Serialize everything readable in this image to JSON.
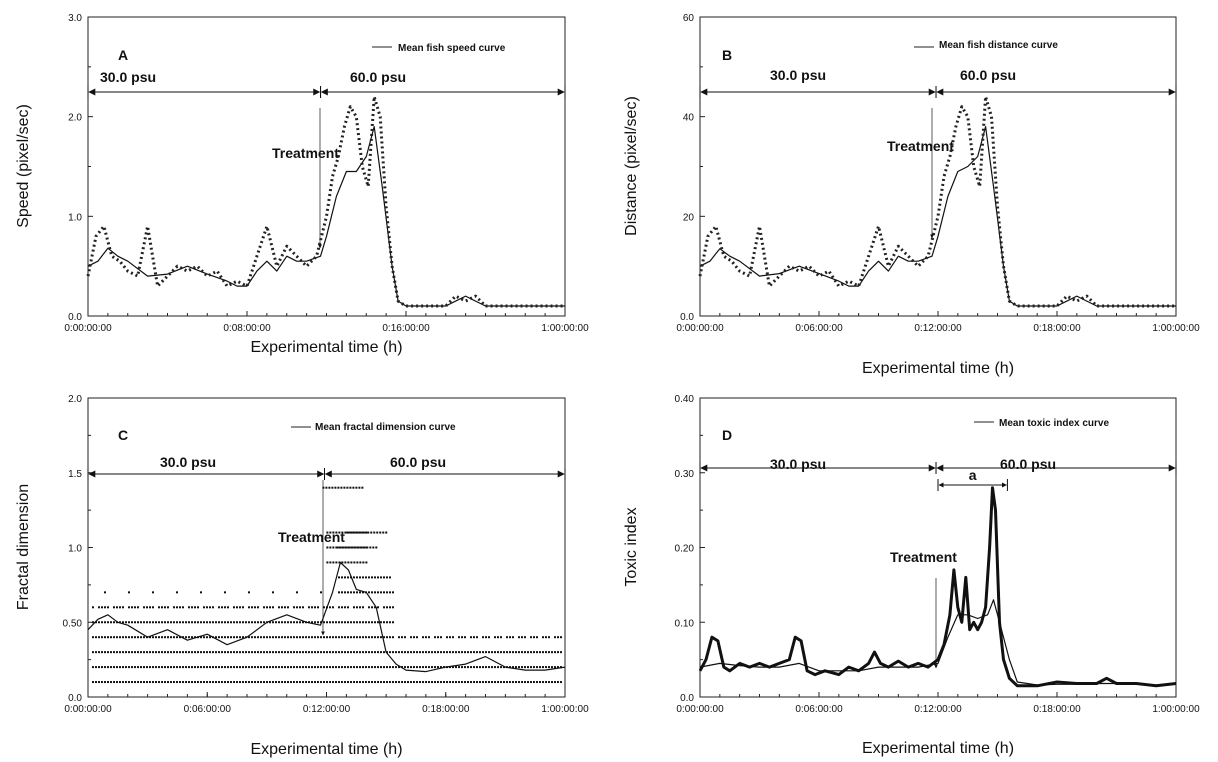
{
  "chart_data": [
    {
      "type": "line",
      "panel_label": "A",
      "legend": "Mean fish speed curve",
      "xlabel": "Experimental time (h)",
      "ylabel": "Speed (pixel/sec)",
      "xlim": [
        0,
        24
      ],
      "ylim": [
        0,
        3.0
      ],
      "x_tick_values": [
        0,
        8,
        16,
        24
      ],
      "x_tick_labels": [
        "0:00:00:00",
        "0:08:00:00",
        "0:16:00:00",
        "1:00:00:00"
      ],
      "y_tick_values": [
        0,
        1,
        2,
        3
      ],
      "y_tick_labels": [
        "0.0",
        "1.0",
        "2.0",
        "3.0"
      ],
      "regions": [
        {
          "label": "30.0 psu",
          "from": 0,
          "to": 11.7
        },
        {
          "label": "60.0 psu",
          "from": 11.7,
          "to": 24
        }
      ],
      "treatment": {
        "label": "Treatment",
        "x": 11.7
      },
      "series": [
        {
          "name": "Mean fish speed curve",
          "style": "solid",
          "x": [
            0,
            0.5,
            1,
            1.5,
            2,
            3,
            4,
            5,
            6,
            7,
            7.5,
            8,
            8.5,
            9,
            9.5,
            10,
            10.5,
            11,
            11.7,
            12,
            12.5,
            13,
            13.5,
            14,
            14.4,
            14.8,
            15.3,
            15.6,
            16,
            17,
            18,
            18.5,
            19,
            19.5,
            20,
            21,
            22,
            23,
            24
          ],
          "y": [
            0.5,
            0.55,
            0.68,
            0.6,
            0.55,
            0.4,
            0.42,
            0.5,
            0.42,
            0.35,
            0.3,
            0.3,
            0.45,
            0.55,
            0.45,
            0.6,
            0.55,
            0.55,
            0.6,
            0.8,
            1.2,
            1.45,
            1.45,
            1.6,
            1.9,
            1.3,
            0.5,
            0.15,
            0.1,
            0.1,
            0.1,
            0.15,
            0.2,
            0.15,
            0.1,
            0.1,
            0.1,
            0.1,
            0.1
          ]
        },
        {
          "name": "",
          "style": "dotted",
          "x": [
            0,
            0.4,
            0.8,
            1.2,
            1.6,
            2,
            2.5,
            3,
            3.5,
            4,
            4.5,
            5,
            5.5,
            6,
            6.5,
            7,
            7.5,
            8,
            8.5,
            9,
            9.5,
            10,
            10.5,
            11,
            11.5,
            12,
            12.3,
            12.6,
            12.9,
            13.2,
            13.5,
            13.8,
            14.1,
            14.4,
            14.7,
            15,
            15.3,
            15.6,
            16,
            17,
            18,
            18.5,
            19,
            19.5,
            20,
            21,
            22,
            23,
            24
          ],
          "y": [
            0.4,
            0.8,
            0.9,
            0.6,
            0.55,
            0.45,
            0.4,
            0.9,
            0.3,
            0.4,
            0.5,
            0.45,
            0.5,
            0.4,
            0.45,
            0.3,
            0.35,
            0.3,
            0.6,
            0.9,
            0.5,
            0.7,
            0.6,
            0.5,
            0.6,
            1.0,
            1.4,
            1.6,
            1.9,
            2.1,
            2.0,
            1.5,
            1.3,
            2.2,
            2.0,
            1.1,
            0.5,
            0.15,
            0.1,
            0.1,
            0.1,
            0.2,
            0.15,
            0.2,
            0.1,
            0.1,
            0.1,
            0.1,
            0.1
          ]
        }
      ]
    },
    {
      "type": "line",
      "panel_label": "B",
      "legend": "Mean fish distance curve",
      "xlabel": "Experimental time (h)",
      "ylabel": "Distance (pixel/sec)",
      "xlim": [
        0,
        24
      ],
      "ylim": [
        0,
        60
      ],
      "x_tick_values": [
        0,
        6,
        12,
        18,
        24
      ],
      "x_tick_labels": [
        "0:00:00:00",
        "0:06:00:00",
        "0:12:00:00",
        "0:18:00:00",
        "1:00:00:00"
      ],
      "y_tick_values": [
        0,
        20,
        40,
        60
      ],
      "y_tick_labels": [
        "0.0",
        "20",
        "40",
        "60"
      ],
      "regions": [
        {
          "label": "30.0 psu",
          "from": 0,
          "to": 11.9
        },
        {
          "label": "60.0 psu",
          "from": 11.9,
          "to": 24
        }
      ],
      "treatment": {
        "label": "Treatment",
        "x": 11.7
      },
      "series": [
        {
          "name": "Mean fish distance curve",
          "style": "solid",
          "x": [
            0,
            0.5,
            1,
            1.5,
            2,
            3,
            4,
            5,
            6,
            7,
            7.5,
            8,
            8.5,
            9,
            9.5,
            10,
            10.5,
            11,
            11.7,
            12,
            12.5,
            13,
            13.5,
            14,
            14.4,
            14.8,
            15.3,
            15.6,
            16,
            17,
            18,
            18.5,
            19,
            19.5,
            20,
            21,
            22,
            23,
            24
          ],
          "y": [
            10,
            11,
            13.5,
            12,
            11,
            8,
            8.5,
            10,
            8.5,
            7,
            6,
            6,
            9,
            11,
            9,
            12,
            11,
            11,
            12,
            16,
            24,
            29,
            30,
            32,
            38,
            26,
            10,
            3,
            2,
            2,
            2,
            3,
            4,
            3,
            2,
            2,
            2,
            2,
            2
          ]
        },
        {
          "name": "",
          "style": "dotted",
          "x": [
            0,
            0.4,
            0.8,
            1.2,
            1.6,
            2,
            2.5,
            3,
            3.5,
            4,
            4.5,
            5,
            5.5,
            6,
            6.5,
            7,
            7.5,
            8,
            8.5,
            9,
            9.5,
            10,
            10.5,
            11,
            11.5,
            12,
            12.3,
            12.6,
            12.9,
            13.2,
            13.5,
            13.8,
            14.1,
            14.4,
            14.7,
            15,
            15.3,
            15.6,
            16,
            17,
            18,
            18.5,
            19,
            19.5,
            20,
            21,
            22,
            23,
            24
          ],
          "y": [
            8,
            16,
            18,
            12,
            11,
            9,
            8,
            18,
            6,
            8,
            10,
            9,
            10,
            8,
            9,
            6,
            7,
            6,
            12,
            18,
            10,
            14,
            12,
            10,
            12,
            20,
            28,
            32,
            38,
            42,
            40,
            30,
            26,
            44,
            40,
            22,
            10,
            3,
            2,
            2,
            2,
            4,
            3,
            4,
            2,
            2,
            2,
            2,
            2
          ]
        }
      ]
    },
    {
      "type": "line",
      "panel_label": "C",
      "legend": "Mean fractal dimension curve",
      "xlabel": "Experimental time (h)",
      "ylabel": "Fractal dimension",
      "xlim": [
        0,
        24
      ],
      "ylim": [
        0,
        2.0
      ],
      "x_tick_values": [
        0,
        6,
        12,
        18,
        24
      ],
      "x_tick_labels": [
        "0:00:00:00",
        "0:06:00:00",
        "0:12:00:00",
        "0:18:00:00",
        "1:00:00:00"
      ],
      "y_tick_values": [
        0,
        0.5,
        1.0,
        1.5,
        2.0
      ],
      "y_tick_labels": [
        "0.0",
        "0.50",
        "1.0",
        "1.5",
        "2.0"
      ],
      "regions": [
        {
          "label": "30.0 psu",
          "from": 0,
          "to": 11.9
        },
        {
          "label": "60.0 psu",
          "from": 11.9,
          "to": 24
        }
      ],
      "treatment": {
        "label": "Treatment",
        "x": 11.7
      },
      "dot_rows": [
        0.1,
        0.2,
        0.3,
        0.4,
        0.5,
        0.6,
        0.7,
        0.8
      ],
      "series": [
        {
          "name": "Mean fractal dimension curve",
          "style": "solid",
          "x": [
            0,
            0.5,
            1,
            1.5,
            2,
            3,
            4,
            5,
            6,
            7,
            8,
            9,
            10,
            11,
            11.7,
            12.3,
            12.7,
            13.1,
            13.5,
            14,
            14.5,
            15,
            15.5,
            16,
            17,
            18,
            19,
            20,
            21,
            22,
            23,
            24
          ],
          "y": [
            0.45,
            0.52,
            0.55,
            0.5,
            0.48,
            0.4,
            0.45,
            0.38,
            0.42,
            0.35,
            0.4,
            0.5,
            0.55,
            0.5,
            0.48,
            0.7,
            0.9,
            0.85,
            0.72,
            0.7,
            0.6,
            0.3,
            0.22,
            0.18,
            0.17,
            0.2,
            0.22,
            0.27,
            0.2,
            0.18,
            0.18,
            0.2
          ]
        }
      ]
    },
    {
      "type": "line",
      "panel_label": "D",
      "legend": "Mean toxic index curve",
      "xlabel": "Experimental time (h)",
      "ylabel": "Toxic index",
      "xlim": [
        0,
        24
      ],
      "ylim": [
        0,
        0.4
      ],
      "x_tick_values": [
        0,
        6,
        12,
        18,
        24
      ],
      "x_tick_labels": [
        "0:00:00:00",
        "0:06:00:00",
        "0:12:00:00",
        "0:18:00:00",
        "1:00:00:00"
      ],
      "y_tick_values": [
        0,
        0.1,
        0.2,
        0.3,
        0.4
      ],
      "y_tick_labels": [
        "0.0",
        "0.10",
        "0.20",
        "0.30",
        "0.40"
      ],
      "regions": [
        {
          "label": "30.0 psu",
          "from": 0,
          "to": 11.9
        },
        {
          "label": "60.0 psu",
          "from": 11.9,
          "to": 24
        }
      ],
      "treatment": {
        "label": "Treatment",
        "x": 11.9
      },
      "interval": {
        "label": "a",
        "from": 12.0,
        "to": 15.5
      },
      "series": [
        {
          "name": "",
          "style": "thick",
          "x": [
            0,
            0.3,
            0.6,
            0.9,
            1.2,
            1.5,
            2,
            2.5,
            3,
            3.5,
            4,
            4.5,
            4.8,
            5.1,
            5.4,
            5.8,
            6.3,
            7,
            7.5,
            8,
            8.5,
            8.8,
            9.1,
            9.5,
            10,
            10.5,
            11,
            11.5,
            12,
            12.3,
            12.6,
            12.8,
            13,
            13.2,
            13.4,
            13.6,
            13.8,
            14,
            14.2,
            14.4,
            14.6,
            14.75,
            14.9,
            15.1,
            15.3,
            15.6,
            16,
            17,
            18,
            19,
            20,
            20.5,
            21,
            22,
            23,
            24
          ],
          "y": [
            0.035,
            0.05,
            0.08,
            0.075,
            0.04,
            0.035,
            0.045,
            0.04,
            0.045,
            0.04,
            0.045,
            0.05,
            0.08,
            0.075,
            0.035,
            0.03,
            0.035,
            0.03,
            0.04,
            0.035,
            0.045,
            0.06,
            0.045,
            0.04,
            0.048,
            0.04,
            0.045,
            0.04,
            0.05,
            0.07,
            0.11,
            0.17,
            0.12,
            0.1,
            0.16,
            0.09,
            0.1,
            0.09,
            0.1,
            0.12,
            0.2,
            0.28,
            0.25,
            0.1,
            0.05,
            0.025,
            0.015,
            0.015,
            0.02,
            0.018,
            0.018,
            0.025,
            0.018,
            0.018,
            0.015,
            0.018
          ]
        },
        {
          "name": "Mean toxic index curve",
          "style": "solid",
          "x": [
            0,
            1,
            2,
            3,
            4,
            5,
            6,
            7,
            8,
            9,
            10,
            11,
            12,
            12.5,
            13,
            13.5,
            14,
            14.5,
            14.8,
            15.2,
            15.6,
            16,
            17,
            18,
            19,
            20,
            21,
            22,
            23,
            24
          ],
          "y": [
            0.04,
            0.045,
            0.042,
            0.04,
            0.04,
            0.045,
            0.035,
            0.035,
            0.035,
            0.04,
            0.04,
            0.04,
            0.045,
            0.08,
            0.11,
            0.11,
            0.105,
            0.11,
            0.13,
            0.09,
            0.05,
            0.02,
            0.016,
            0.017,
            0.017,
            0.018,
            0.018,
            0.017,
            0.016,
            0.017
          ]
        }
      ]
    }
  ]
}
